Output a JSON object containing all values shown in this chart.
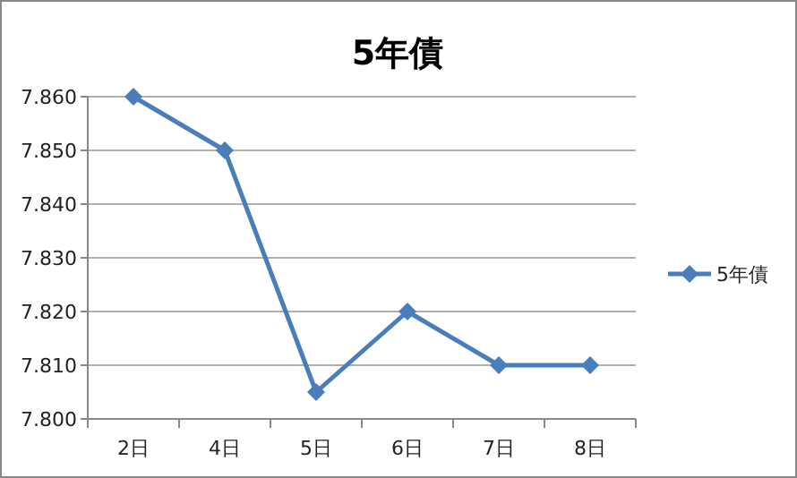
{
  "chart_data": {
    "type": "line",
    "title": "5年債",
    "categories": [
      "2日",
      "4日",
      "5日",
      "6日",
      "7日",
      "8日"
    ],
    "series": [
      {
        "name": "5年債",
        "color": "#4a7ebb",
        "values": [
          7.86,
          7.85,
          7.805,
          7.82,
          7.81,
          7.81
        ]
      }
    ],
    "ylim": [
      7.8,
      7.86
    ],
    "yticks": [
      {
        "value": 7.8,
        "label": "7.800"
      },
      {
        "value": 7.81,
        "label": "7.810"
      },
      {
        "value": 7.82,
        "label": "7.820"
      },
      {
        "value": 7.83,
        "label": "7.830"
      },
      {
        "value": 7.84,
        "label": "7.840"
      },
      {
        "value": 7.85,
        "label": "7.850"
      },
      {
        "value": 7.86,
        "label": "7.860"
      }
    ],
    "grid": "y",
    "legend": "right",
    "marker": "diamond",
    "line_style": "solid"
  }
}
